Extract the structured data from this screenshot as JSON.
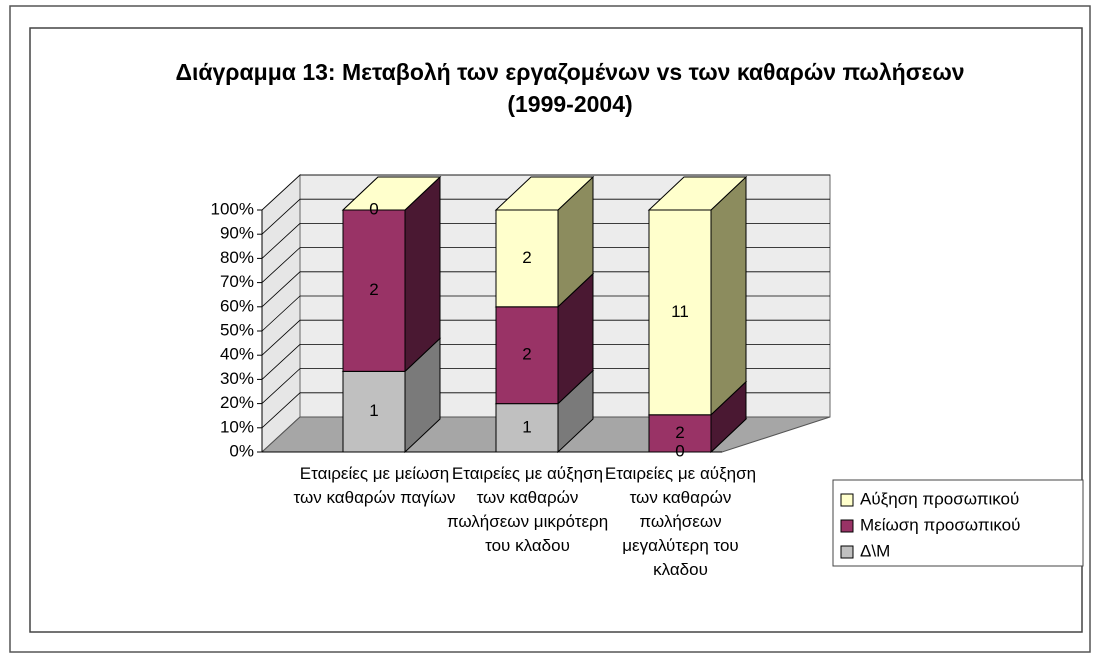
{
  "chart_data": {
    "type": "stacked_bar_3d_percent",
    "title": "Διάγραμμα 13: Μεταβολή των εργαζομένων vs των καθαρών πωλήσεων (1999-2004)",
    "categories": [
      "Εταιρείες με μείωση των καθαρών παγίων",
      "Εταιρείες με αύξηση των καθαρών πωλήσεων μικρότερη του κλαδου",
      "Εταιρείες με αύξηση των καθαρών πωλήσεων μεγαλύτερη του κλαδου"
    ],
    "series": [
      {
        "name": "Δ\\Μ",
        "color": "#c0c0c0",
        "side": "#7a7a7a",
        "values": [
          1,
          1,
          0
        ]
      },
      {
        "name": "Μείωση προσωπικού",
        "color": "#993366",
        "side": "#4a1832",
        "values": [
          2,
          2,
          2
        ]
      },
      {
        "name": "Αύξηση προσωπικού",
        "color": "#ffffcc",
        "side": "#8c8c5e",
        "values": [
          0,
          2,
          11
        ]
      }
    ],
    "ylim": [
      0,
      100
    ],
    "yticks": [
      {
        "value": 0,
        "label": "0%"
      },
      {
        "value": 10,
        "label": "10%"
      },
      {
        "value": 20,
        "label": "20%"
      },
      {
        "value": 30,
        "label": "30%"
      },
      {
        "value": 40,
        "label": "40%"
      },
      {
        "value": 50,
        "label": "50%"
      },
      {
        "value": 60,
        "label": "60%"
      },
      {
        "value": 70,
        "label": "70%"
      },
      {
        "value": 80,
        "label": "80%"
      },
      {
        "value": 90,
        "label": "90%"
      },
      {
        "value": 100,
        "label": "100%"
      }
    ],
    "grid": true,
    "legend": "right"
  }
}
